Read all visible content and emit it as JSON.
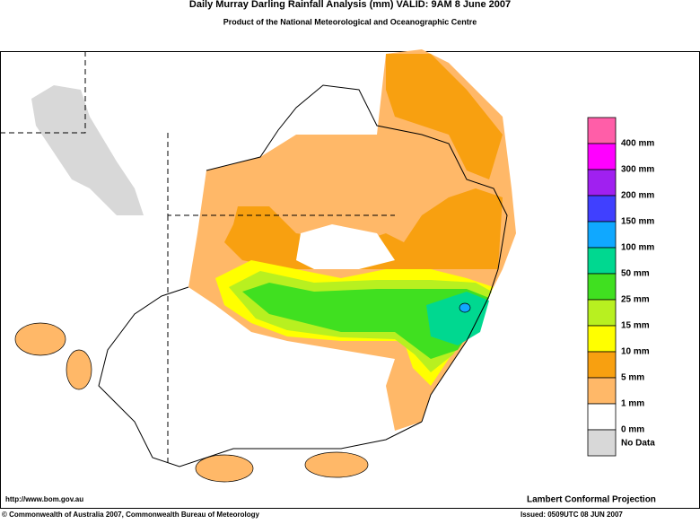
{
  "header": {
    "title": "Daily Murray Darling Rainfall Analysis (mm)  VALID: 9AM  8 June 2007",
    "subtitle": "Product of the National Meteorological and Oceanographic Centre"
  },
  "legend": {
    "colors": [
      "#ff5ea8",
      "#ff00ff",
      "#a020f0",
      "#4040ff",
      "#10a8ff",
      "#00d890",
      "#40e020",
      "#b8f020",
      "#ffff00",
      "#f8a010",
      "#ffb868",
      "#ffffff",
      "#d8d8d8"
    ],
    "labels": [
      "400 mm",
      "300 mm",
      "200 mm",
      "150 mm",
      "100 mm",
      "50 mm",
      "25 mm",
      "15 mm",
      "10 mm",
      "5 mm",
      "1 mm",
      "0 mm",
      "No Data"
    ]
  },
  "footer": {
    "url": "http://www.bom.gov.au",
    "projection": "Lambert Conformal Projection",
    "copyright": "© Commonwealth of Australia 2007, Commonwealth Bureau of Meteorology",
    "issued": "Issued: 0509UTC 08 JUN 2007"
  }
}
